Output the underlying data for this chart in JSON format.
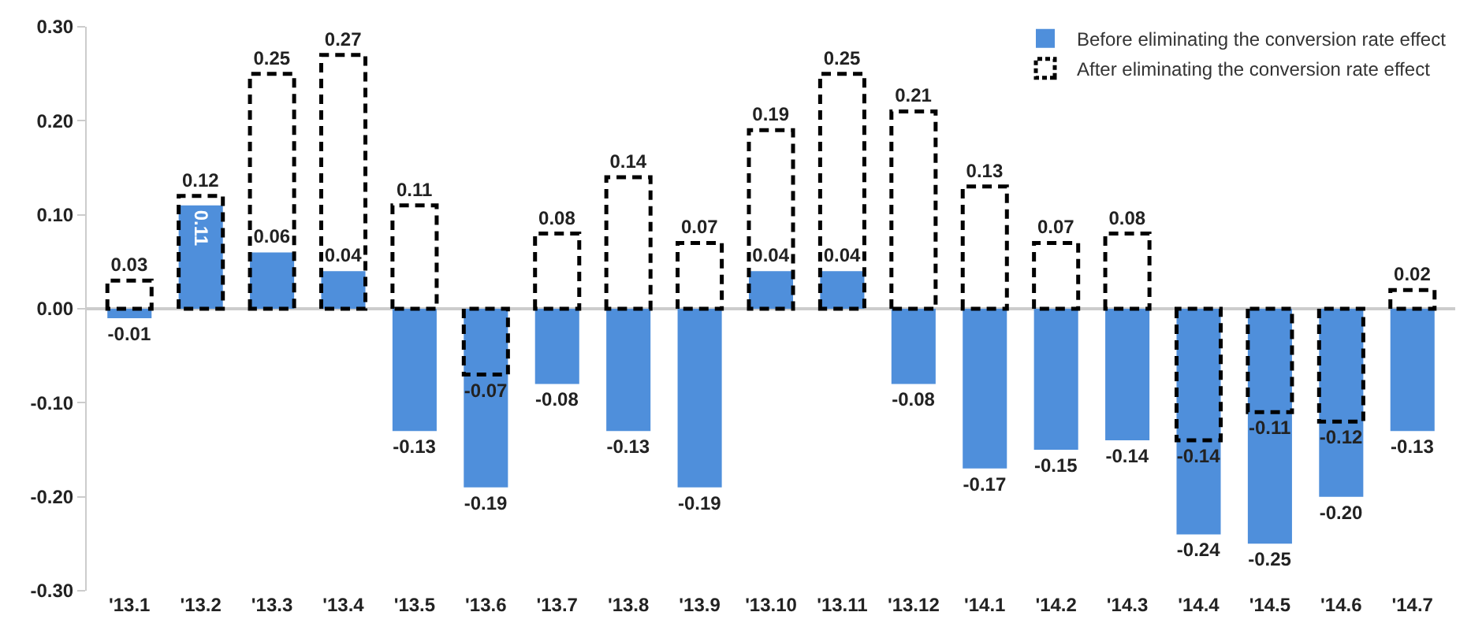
{
  "chart_data": {
    "type": "bar",
    "categories": [
      "'13.1",
      "'13.2",
      "'13.3",
      "'13.4",
      "'13.5",
      "'13.6",
      "'13.7",
      "'13.8",
      "'13.9",
      "'13.10",
      "'13.11",
      "'13.12",
      "'14.1",
      "'14.2",
      "'14.3",
      "'14.4",
      "'14.5",
      "'14.6",
      "'14.7"
    ],
    "series": [
      {
        "name": "Before eliminating the conversion rate effect",
        "color": "#4f8fdb",
        "values": [
          -0.01,
          0.11,
          0.06,
          0.04,
          -0.13,
          -0.19,
          -0.08,
          -0.13,
          -0.19,
          0.04,
          0.04,
          -0.08,
          -0.17,
          -0.15,
          -0.14,
          -0.24,
          -0.25,
          -0.2,
          -0.13
        ],
        "value_labels": [
          "-0.01",
          "0.11",
          "0.06",
          "0.04",
          "-0.13",
          "-0.19",
          "-0.08",
          "-0.13",
          "-0.19",
          "0.04",
          "0.04",
          "-0.08",
          "-0.17",
          "-0.15",
          "-0.14",
          "-0.24",
          "-0.25",
          "-0.20",
          "-0.13"
        ]
      },
      {
        "name": "After eliminating the conversion rate effect",
        "color": "#000000",
        "line_style": "dashed",
        "values": [
          0.03,
          0.12,
          0.25,
          0.27,
          0.11,
          -0.07,
          0.08,
          0.14,
          0.07,
          0.19,
          0.25,
          0.21,
          0.13,
          0.07,
          0.08,
          -0.14,
          -0.11,
          -0.12,
          0.02
        ],
        "value_labels": [
          "0.03",
          "0.12",
          "0.25",
          "0.27",
          "0.11",
          "-0.07",
          "0.08",
          "0.14",
          "0.07",
          "0.19",
          "0.25",
          "0.21",
          "0.13",
          "0.07",
          "0.08",
          "-0.14",
          "-0.11",
          "-0.12",
          "0.02"
        ]
      }
    ],
    "ylim": [
      -0.3,
      0.3
    ],
    "yticks": [
      {
        "value": -0.3,
        "label": "-0.30"
      },
      {
        "value": -0.2,
        "label": "-0.20"
      },
      {
        "value": -0.1,
        "label": "-0.10"
      },
      {
        "value": 0,
        "label": "0.00"
      },
      {
        "value": 0.1,
        "label": "0.10"
      },
      {
        "value": 0.2,
        "label": "0.20"
      },
      {
        "value": 0.3,
        "label": "0.30"
      }
    ],
    "legend": "top right"
  }
}
